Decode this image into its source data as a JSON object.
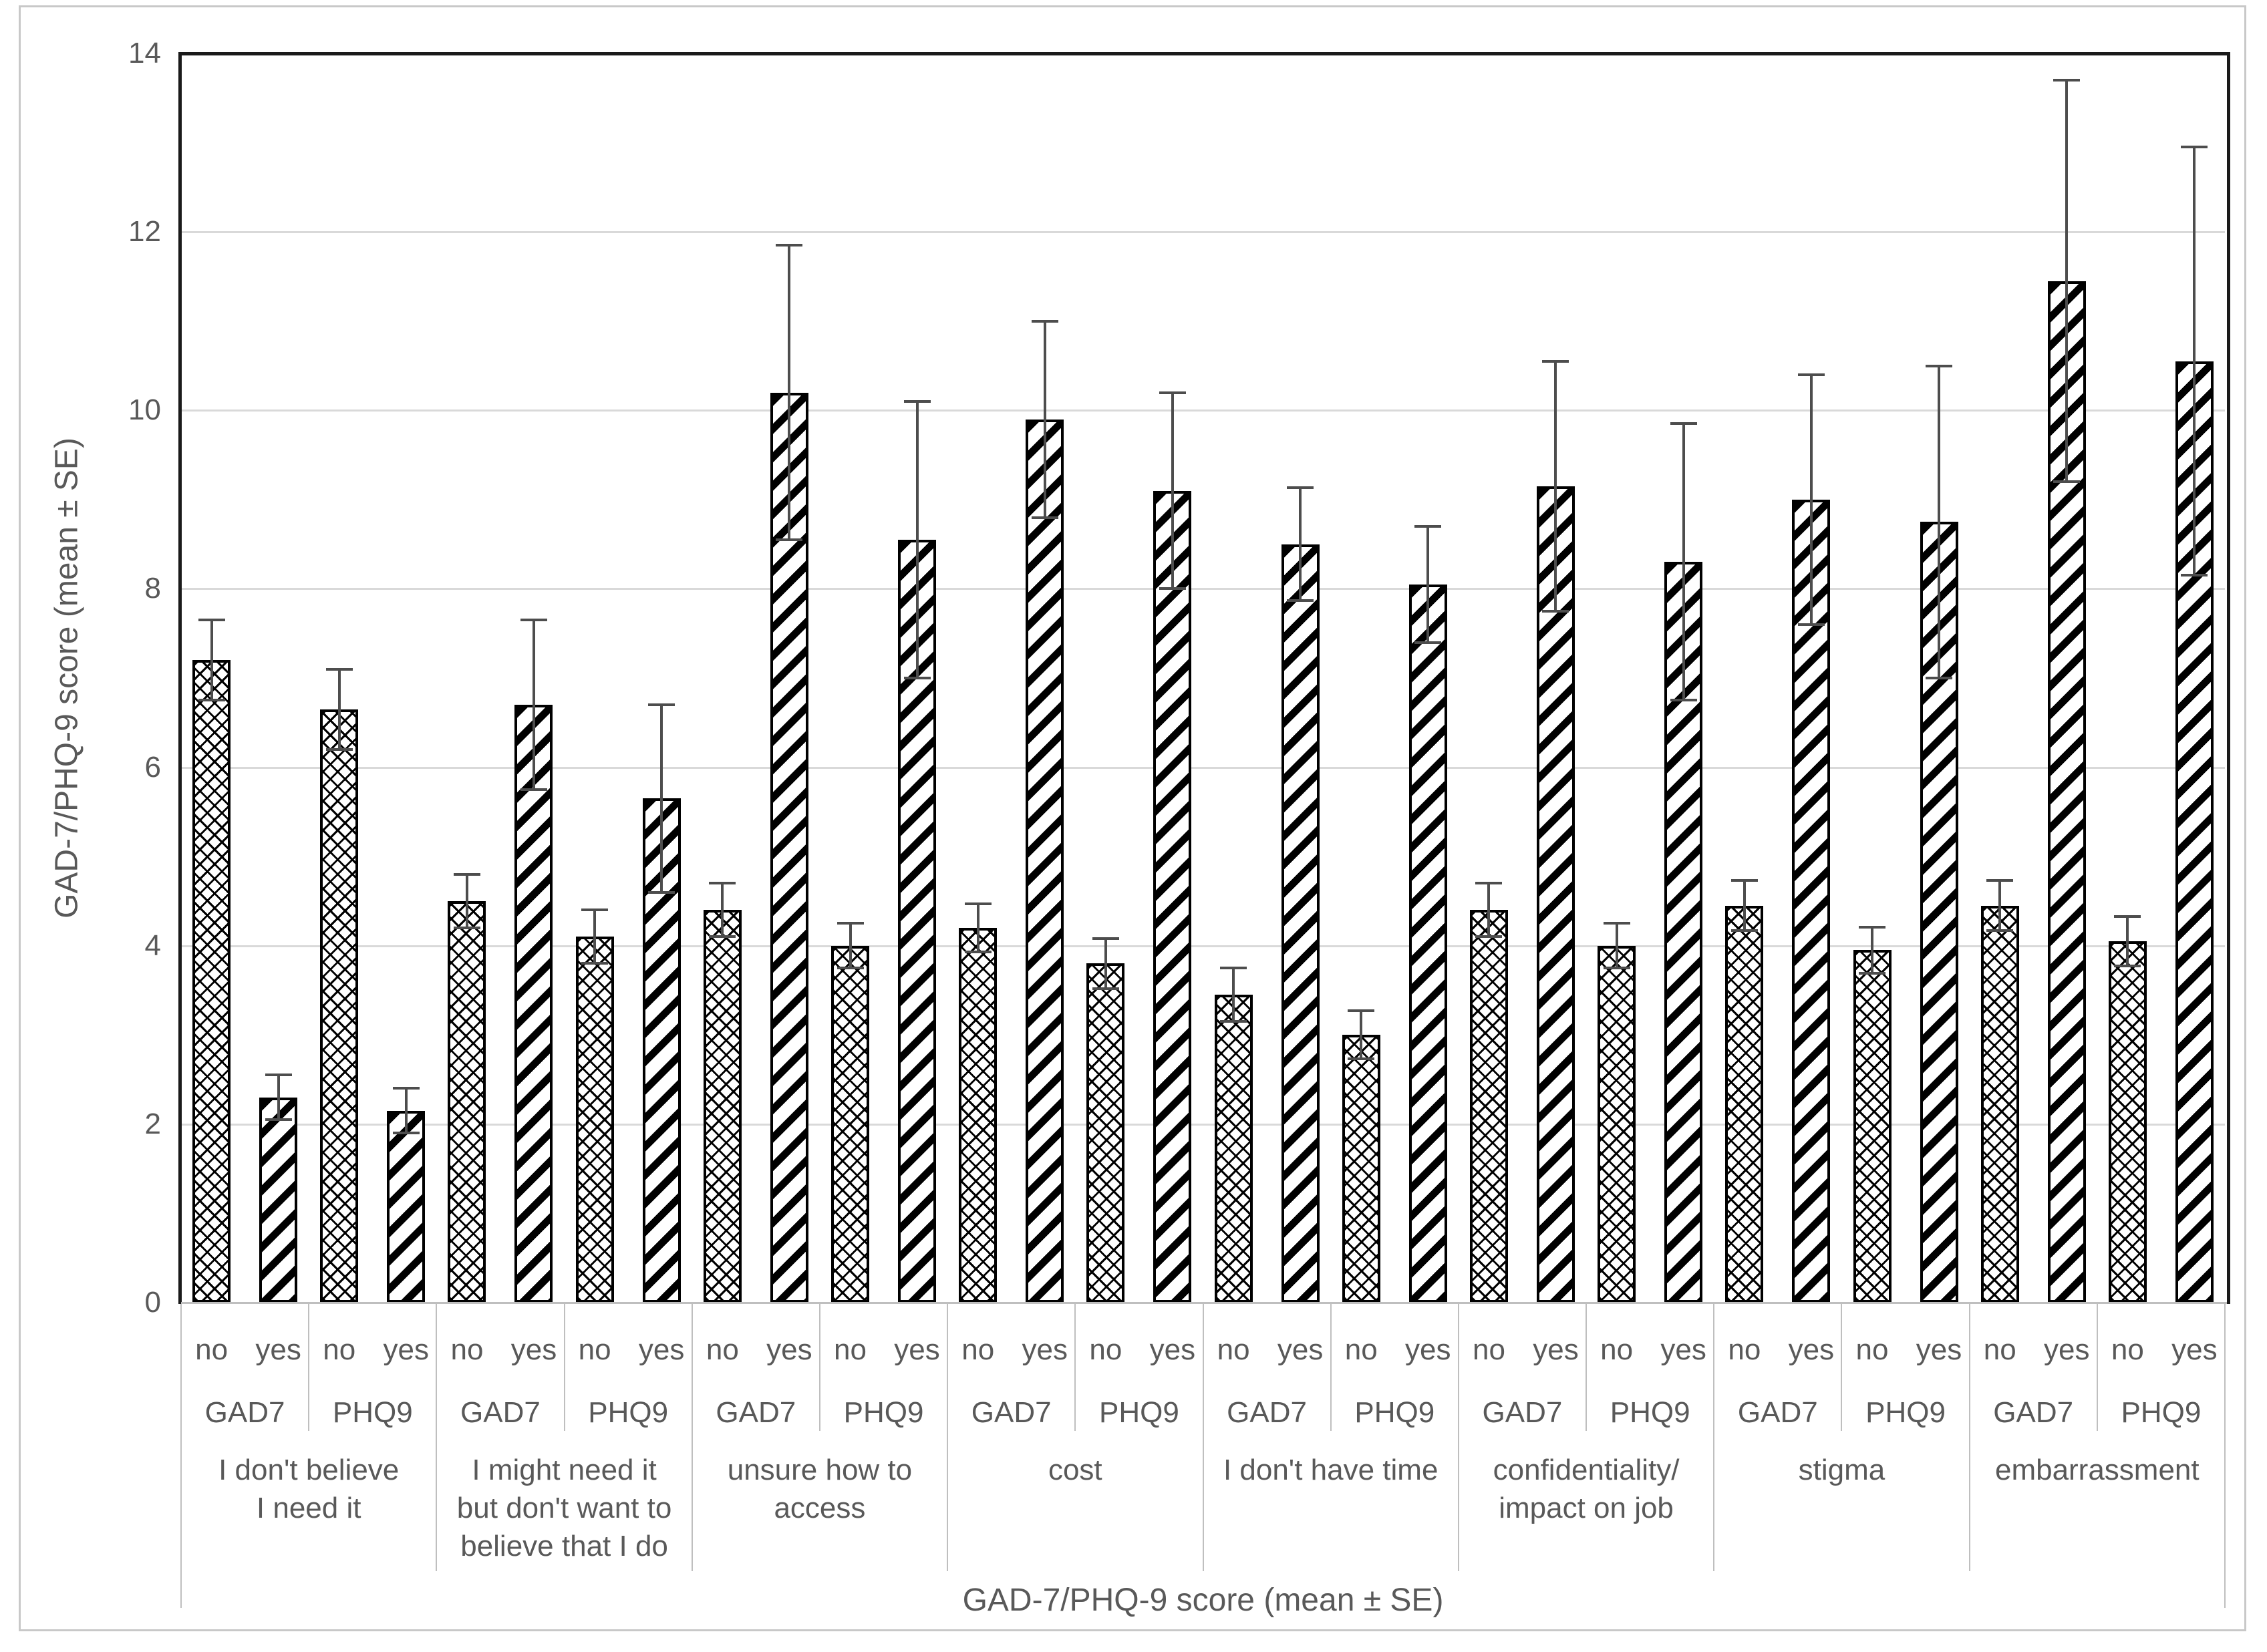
{
  "colors": {
    "text": "#595959",
    "gridline": "#d9d9d9",
    "plot_border": "#1a1a1a",
    "category_separator": "#bfbfbf",
    "bar_fill": "#ffffff",
    "bar_border": "#000000",
    "error_bar": "#4d4d4d",
    "figure_border": "#c8c8c8"
  },
  "chart_data": {
    "type": "bar",
    "title": "",
    "ylabel": "GAD-7/PHQ-9 score (mean ± SE)",
    "xlabel": "GAD-7/PHQ-9 score (mean ± SE)",
    "ylim": [
      0,
      14
    ],
    "yticks": [
      0,
      2,
      4,
      6,
      8,
      10,
      12,
      14
    ],
    "grid": true,
    "legend": "none",
    "error_bars": "± SE, both directions, with caps",
    "series_patterns": [
      {
        "condition": "no",
        "pattern": "diamond-crosshatch"
      },
      {
        "condition": "yes",
        "pattern": "upward-diagonal-stripes"
      }
    ],
    "groups": [
      {
        "label_lines": [
          "I don't believe",
          "I need it"
        ],
        "subgroups": [
          {
            "name": "GAD7",
            "bars": [
              {
                "condition": "no",
                "mean": 7.2,
                "se": 0.45
              },
              {
                "condition": "yes",
                "mean": 2.3,
                "se": 0.25
              }
            ]
          },
          {
            "name": "PHQ9",
            "bars": [
              {
                "condition": "no",
                "mean": 6.65,
                "se": 0.45
              },
              {
                "condition": "yes",
                "mean": 2.15,
                "se": 0.25
              }
            ]
          }
        ]
      },
      {
        "label_lines": [
          "I might need it",
          "but don't want to",
          "believe that I do"
        ],
        "subgroups": [
          {
            "name": "GAD7",
            "bars": [
              {
                "condition": "no",
                "mean": 4.5,
                "se": 0.3
              },
              {
                "condition": "yes",
                "mean": 6.7,
                "se": 0.95
              }
            ]
          },
          {
            "name": "PHQ9",
            "bars": [
              {
                "condition": "no",
                "mean": 4.1,
                "se": 0.3
              },
              {
                "condition": "yes",
                "mean": 5.65,
                "se": 1.05
              }
            ]
          }
        ]
      },
      {
        "label_lines": [
          "unsure how to",
          "access"
        ],
        "subgroups": [
          {
            "name": "GAD7",
            "bars": [
              {
                "condition": "no",
                "mean": 4.4,
                "se": 0.3
              },
              {
                "condition": "yes",
                "mean": 10.2,
                "se": 1.65
              }
            ]
          },
          {
            "name": "PHQ9",
            "bars": [
              {
                "condition": "no",
                "mean": 4.0,
                "se": 0.25
              },
              {
                "condition": "yes",
                "mean": 8.55,
                "se": 1.55
              }
            ]
          }
        ]
      },
      {
        "label_lines": [
          "cost"
        ],
        "subgroups": [
          {
            "name": "GAD7",
            "bars": [
              {
                "condition": "no",
                "mean": 4.2,
                "se": 0.27
              },
              {
                "condition": "yes",
                "mean": 9.9,
                "se": 1.1
              }
            ]
          },
          {
            "name": "PHQ9",
            "bars": [
              {
                "condition": "no",
                "mean": 3.8,
                "se": 0.28
              },
              {
                "condition": "yes",
                "mean": 9.1,
                "se": 1.1
              }
            ]
          }
        ]
      },
      {
        "label_lines": [
          "I don't have time"
        ],
        "subgroups": [
          {
            "name": "GAD7",
            "bars": [
              {
                "condition": "no",
                "mean": 3.45,
                "se": 0.3
              },
              {
                "condition": "yes",
                "mean": 8.5,
                "se": 0.63
              }
            ]
          },
          {
            "name": "PHQ9",
            "bars": [
              {
                "condition": "no",
                "mean": 3.0,
                "se": 0.27
              },
              {
                "condition": "yes",
                "mean": 8.05,
                "se": 0.65
              }
            ]
          }
        ]
      },
      {
        "label_lines": [
          "confidentiality/",
          "impact on job"
        ],
        "subgroups": [
          {
            "name": "GAD7",
            "bars": [
              {
                "condition": "no",
                "mean": 4.4,
                "se": 0.3
              },
              {
                "condition": "yes",
                "mean": 9.15,
                "se": 1.4
              }
            ]
          },
          {
            "name": "PHQ9",
            "bars": [
              {
                "condition": "no",
                "mean": 4.0,
                "se": 0.25
              },
              {
                "condition": "yes",
                "mean": 8.3,
                "se": 1.55
              }
            ]
          }
        ]
      },
      {
        "label_lines": [
          "stigma"
        ],
        "subgroups": [
          {
            "name": "GAD7",
            "bars": [
              {
                "condition": "no",
                "mean": 4.45,
                "se": 0.28
              },
              {
                "condition": "yes",
                "mean": 9.0,
                "se": 1.4
              }
            ]
          },
          {
            "name": "PHQ9",
            "bars": [
              {
                "condition": "no",
                "mean": 3.95,
                "se": 0.26
              },
              {
                "condition": "yes",
                "mean": 8.75,
                "se": 1.75
              }
            ]
          }
        ]
      },
      {
        "label_lines": [
          "embarrassment"
        ],
        "subgroups": [
          {
            "name": "GAD7",
            "bars": [
              {
                "condition": "no",
                "mean": 4.45,
                "se": 0.28
              },
              {
                "condition": "yes",
                "mean": 11.45,
                "se": 2.25
              }
            ]
          },
          {
            "name": "PHQ9",
            "bars": [
              {
                "condition": "no",
                "mean": 4.05,
                "se": 0.28
              },
              {
                "condition": "yes",
                "mean": 10.55,
                "se": 2.4
              }
            ]
          }
        ]
      }
    ]
  }
}
